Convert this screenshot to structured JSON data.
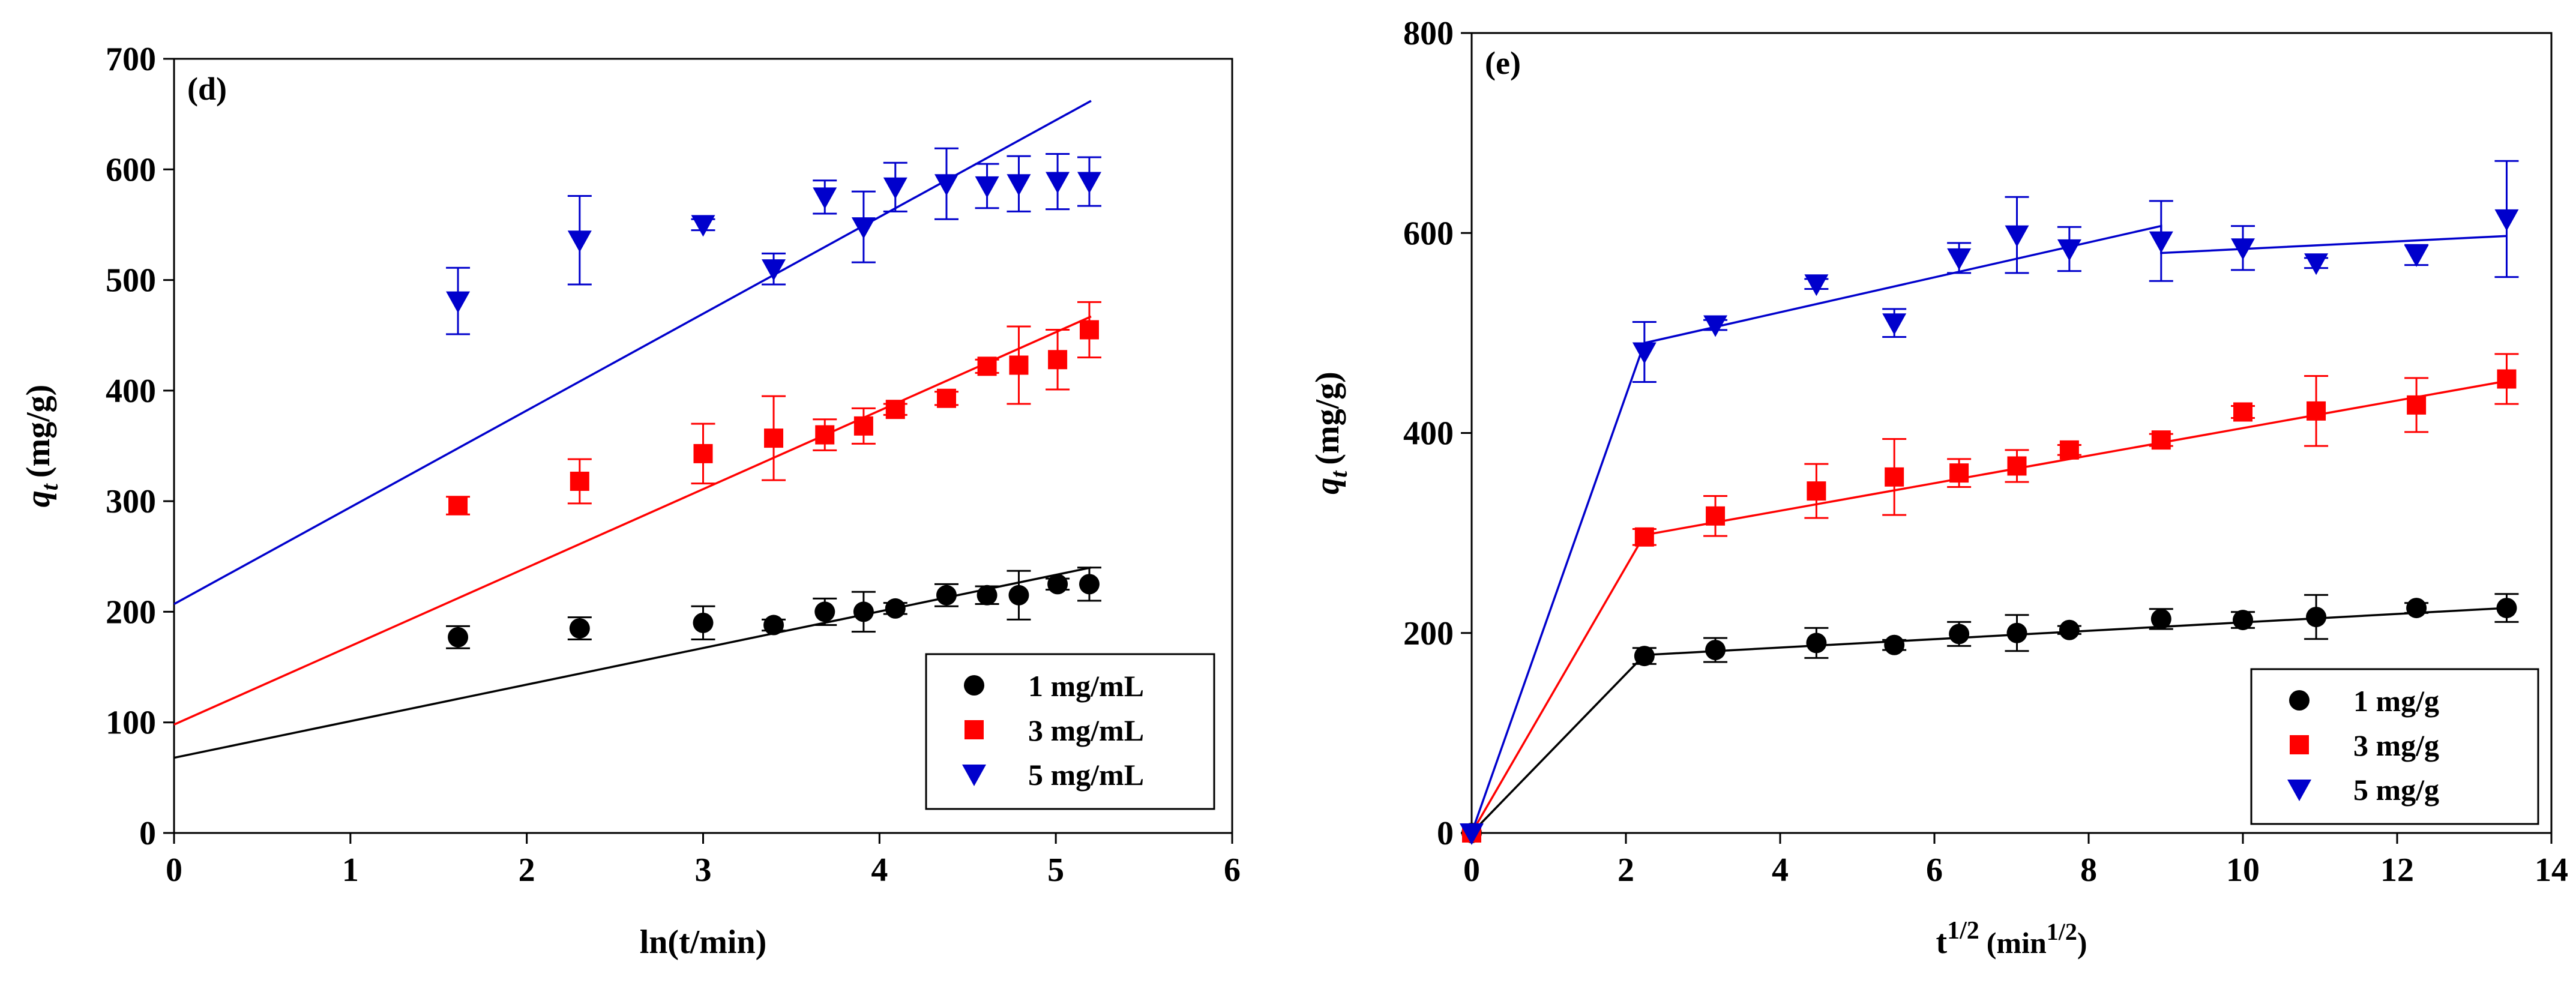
{
  "chart_data": [
    {
      "type": "scatter",
      "panel_label": "(d)",
      "xlabel": "ln(t/min)",
      "ylabel_base": "q",
      "ylabel_sub": "t",
      "ylabel_unit": "(mg/g)",
      "xlim": [
        0,
        6
      ],
      "ylim": [
        0,
        700
      ],
      "x_ticks": [
        0,
        1,
        2,
        3,
        4,
        5,
        6
      ],
      "y_ticks": [
        0,
        100,
        200,
        300,
        400,
        500,
        600,
        700
      ],
      "legend_position": "bottom-right",
      "series": [
        {
          "name": "1 mg/mL",
          "marker": "circle",
          "color": "#000000",
          "x": [
            1.61,
            2.3,
            3.0,
            3.4,
            3.69,
            3.91,
            4.09,
            4.38,
            4.61,
            4.79,
            5.01,
            5.19
          ],
          "y": [
            177,
            185,
            190,
            188,
            200,
            200,
            203,
            215,
            215,
            215,
            225,
            225
          ],
          "err": [
            10,
            10,
            15,
            5,
            12,
            18,
            5,
            10,
            8,
            22,
            5,
            15
          ],
          "fit": {
            "x": [
              0,
              5.2
            ],
            "y": [
              68,
              240
            ]
          }
        },
        {
          "name": "3 mg/mL",
          "marker": "square",
          "color": "#ff0000",
          "x": [
            1.61,
            2.3,
            3.0,
            3.4,
            3.69,
            3.91,
            4.09,
            4.38,
            4.61,
            4.79,
            5.01,
            5.19
          ],
          "y": [
            296,
            318,
            343,
            357,
            360,
            368,
            383,
            393,
            422,
            423,
            428,
            455
          ],
          "err": [
            8,
            20,
            27,
            38,
            14,
            16,
            5,
            6,
            6,
            35,
            27,
            25
          ],
          "fit": {
            "x": [
              0,
              5.2
            ],
            "y": [
              98,
              467
            ]
          }
        },
        {
          "name": "5 mg/mL",
          "marker": "triangle-down",
          "color": "#0000cc",
          "x": [
            1.61,
            2.3,
            3.0,
            3.4,
            3.69,
            3.91,
            4.09,
            4.38,
            4.61,
            4.79,
            5.01,
            5.19
          ],
          "y": [
            481,
            536,
            550,
            510,
            575,
            548,
            584,
            587,
            585,
            587,
            589,
            589
          ],
          "err": [
            30,
            40,
            5,
            14,
            15,
            32,
            22,
            32,
            20,
            25,
            25,
            22
          ],
          "fit": {
            "x": [
              0,
              5.2
            ],
            "y": [
              207,
              662
            ]
          }
        }
      ]
    },
    {
      "type": "scatter",
      "panel_label": "(e)",
      "xlabel_base": "t",
      "xlabel_sup": "1/2",
      "xlabel_unit_base": "(min",
      "xlabel_unit_sup": "1/2",
      "xlabel_unit_end": ")",
      "ylabel_base": "q",
      "ylabel_sub": "t",
      "ylabel_unit": "(mg/g)",
      "xlim": [
        0,
        14
      ],
      "ylim": [
        0,
        800
      ],
      "x_ticks": [
        0,
        2,
        4,
        6,
        8,
        10,
        12,
        14
      ],
      "y_ticks": [
        0,
        200,
        400,
        600,
        800
      ],
      "legend_position": "bottom-right",
      "series": [
        {
          "name": "1 mg/g",
          "marker": "circle",
          "color": "#000000",
          "x": [
            0,
            2.24,
            3.16,
            4.47,
            5.48,
            6.32,
            7.07,
            7.75,
            8.94,
            10.0,
            10.95,
            12.25,
            13.42
          ],
          "y": [
            0,
            177,
            183,
            190,
            188,
            199,
            200,
            203,
            214,
            213,
            216,
            225,
            225
          ],
          "err": [
            0,
            8,
            12,
            15,
            5,
            12,
            18,
            4,
            10,
            8,
            22,
            5,
            14
          ],
          "fit": {
            "x": [
              0,
              2.24,
              13.42
            ],
            "y": [
              0,
              178,
              225
            ]
          }
        },
        {
          "name": "3 mg/g",
          "marker": "square",
          "color": "#ff0000",
          "x": [
            0,
            2.24,
            3.16,
            4.47,
            5.48,
            6.32,
            7.07,
            7.75,
            8.94,
            10.0,
            10.95,
            12.25,
            13.42
          ],
          "y": [
            0,
            296,
            317,
            342,
            356,
            360,
            367,
            383,
            393,
            421,
            422,
            428,
            454
          ],
          "err": [
            0,
            8,
            20,
            27,
            38,
            14,
            16,
            5,
            6,
            6,
            35,
            27,
            25
          ],
          "fit": {
            "x": [
              0,
              2.24,
              13.42
            ],
            "y": [
              0,
              298,
              452
            ]
          }
        },
        {
          "name": "5 mg/g",
          "marker": "triangle-down",
          "color": "#0000cc",
          "x": [
            0,
            2.24,
            3.16,
            4.47,
            5.48,
            6.32,
            7.07,
            7.75,
            8.94,
            10.0,
            10.95,
            12.25,
            13.42
          ],
          "y": [
            0,
            481,
            508,
            549,
            510,
            575,
            598,
            584,
            592,
            585,
            570,
            578,
            614
          ],
          "err": [
            0,
            30,
            5,
            5,
            14,
            15,
            38,
            22,
            40,
            22,
            5,
            10,
            58
          ],
          "fit": {
            "x": [
              0,
              2.24,
              8.94,
              8.94,
              13.42
            ],
            "y": [
              0,
              490,
              607,
              580,
              597
            ]
          }
        }
      ]
    }
  ]
}
